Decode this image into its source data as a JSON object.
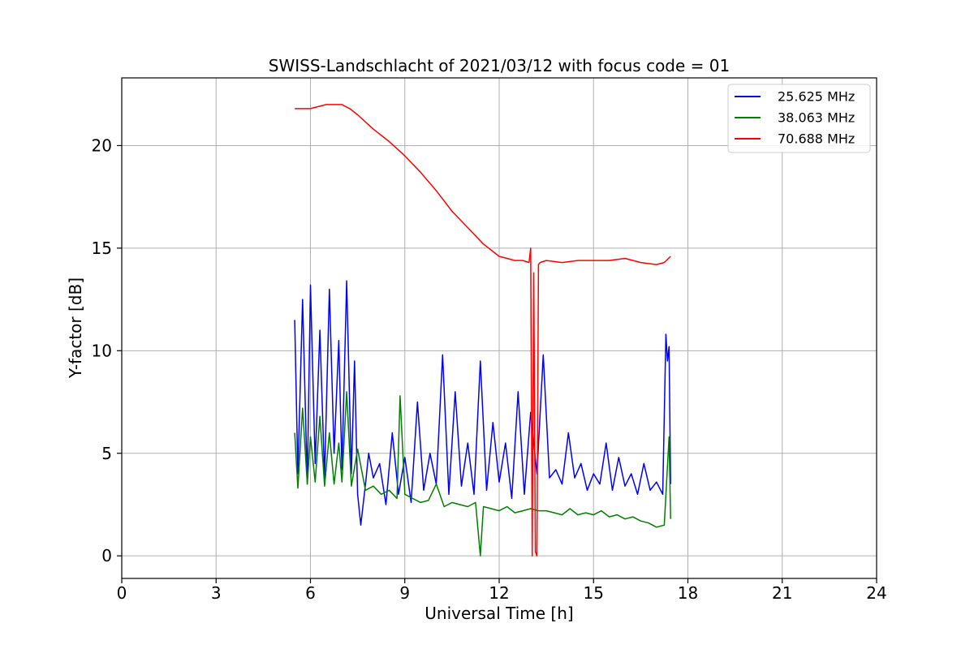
{
  "chart_data": {
    "type": "line",
    "title": "SWISS-Landschlacht of 2021/03/12 with focus code = 01",
    "xlabel": "Universal Time [h]",
    "ylabel": "Y-factor [dB]",
    "xlim": [
      0,
      24
    ],
    "ylim": [
      -1.1,
      23.3
    ],
    "x_ticks": [
      0,
      3,
      6,
      9,
      12,
      15,
      18,
      21,
      24
    ],
    "y_ticks": [
      0,
      5,
      10,
      15,
      20
    ],
    "grid": true,
    "legend_position": "top-right",
    "series": [
      {
        "name": "25.625 MHz",
        "color": "#0000ff",
        "x": [
          5.5,
          5.6,
          5.75,
          5.9,
          6.0,
          6.15,
          6.3,
          6.45,
          6.6,
          6.75,
          6.9,
          7.0,
          7.15,
          7.3,
          7.4,
          7.5,
          7.6,
          7.75,
          7.85,
          8.0,
          8.2,
          8.4,
          8.6,
          8.8,
          9.0,
          9.2,
          9.4,
          9.6,
          9.8,
          10.0,
          10.2,
          10.4,
          10.6,
          10.8,
          11.0,
          11.2,
          11.4,
          11.6,
          11.8,
          12.0,
          12.2,
          12.4,
          12.6,
          12.8,
          13.0,
          13.2,
          13.4,
          13.6,
          13.8,
          14.0,
          14.2,
          14.4,
          14.6,
          14.8,
          15.0,
          15.2,
          15.4,
          15.6,
          15.8,
          16.0,
          16.2,
          16.4,
          16.6,
          16.8,
          17.0,
          17.2,
          17.3,
          17.35,
          17.4,
          17.45
        ],
        "values": [
          11.5,
          4.0,
          12.5,
          3.5,
          13.2,
          4.5,
          11.0,
          3.8,
          13.0,
          5.0,
          10.5,
          4.2,
          13.4,
          4.0,
          9.5,
          3.0,
          1.5,
          3.5,
          5.0,
          3.8,
          4.5,
          2.5,
          6.0,
          3.0,
          4.8,
          2.6,
          7.5,
          3.2,
          5.0,
          3.5,
          9.8,
          3.0,
          8.0,
          3.4,
          5.5,
          3.0,
          9.5,
          3.2,
          6.5,
          3.6,
          5.5,
          2.8,
          8.0,
          3.0,
          7.0,
          4.0,
          9.8,
          3.8,
          4.2,
          3.5,
          6.0,
          3.8,
          4.5,
          3.2,
          4.0,
          3.5,
          5.5,
          3.2,
          4.8,
          3.4,
          4.0,
          3.0,
          4.5,
          3.2,
          3.6,
          3.0,
          10.8,
          9.5,
          10.2,
          3.5
        ]
      },
      {
        "name": "38.063 MHz",
        "color": "#008000",
        "x": [
          5.5,
          5.6,
          5.75,
          5.9,
          6.0,
          6.15,
          6.3,
          6.45,
          6.6,
          6.75,
          6.9,
          7.0,
          7.15,
          7.3,
          7.5,
          7.75,
          8.0,
          8.25,
          8.5,
          8.75,
          8.85,
          9.0,
          9.25,
          9.5,
          9.75,
          10.0,
          10.25,
          10.5,
          10.75,
          11.0,
          11.25,
          11.4,
          11.5,
          11.75,
          12.0,
          12.25,
          12.5,
          12.75,
          13.0,
          13.25,
          13.5,
          13.75,
          14.0,
          14.25,
          14.5,
          14.75,
          15.0,
          15.25,
          15.5,
          15.75,
          16.0,
          16.25,
          16.5,
          16.75,
          17.0,
          17.25,
          17.4,
          17.45
        ],
        "values": [
          6.0,
          3.3,
          7.2,
          3.5,
          5.8,
          3.6,
          6.8,
          3.4,
          6.0,
          3.5,
          5.5,
          3.6,
          8.0,
          3.4,
          5.2,
          3.2,
          3.4,
          3.0,
          3.2,
          2.8,
          7.8,
          3.0,
          2.8,
          2.6,
          2.7,
          3.5,
          2.4,
          2.6,
          2.5,
          2.4,
          2.6,
          0.0,
          2.4,
          2.3,
          2.2,
          2.4,
          2.1,
          2.2,
          2.3,
          2.2,
          2.2,
          2.1,
          2.0,
          2.3,
          2.0,
          2.1,
          2.0,
          2.2,
          1.9,
          2.0,
          1.8,
          1.9,
          1.7,
          1.6,
          1.4,
          1.5,
          5.8,
          1.8
        ]
      },
      {
        "name": "70.688 MHz",
        "color": "#ff0000",
        "x": [
          5.5,
          6.0,
          6.5,
          7.0,
          7.25,
          7.5,
          8.0,
          8.5,
          9.0,
          9.5,
          10.0,
          10.5,
          11.0,
          11.5,
          12.0,
          12.25,
          12.5,
          12.75,
          12.95,
          13.0,
          13.05,
          13.1,
          13.15,
          13.2,
          13.25,
          13.3,
          13.5,
          14.0,
          14.5,
          15.0,
          15.5,
          16.0,
          16.5,
          17.0,
          17.25,
          17.45
        ],
        "values": [
          21.8,
          21.8,
          22.0,
          22.0,
          21.8,
          21.5,
          20.8,
          20.2,
          19.5,
          18.7,
          17.8,
          16.8,
          16.0,
          15.2,
          14.6,
          14.5,
          14.4,
          14.4,
          14.3,
          15.0,
          0.0,
          13.8,
          0.2,
          0.0,
          14.2,
          14.3,
          14.4,
          14.3,
          14.4,
          14.4,
          14.4,
          14.5,
          14.3,
          14.2,
          14.3,
          14.6
        ]
      }
    ]
  }
}
